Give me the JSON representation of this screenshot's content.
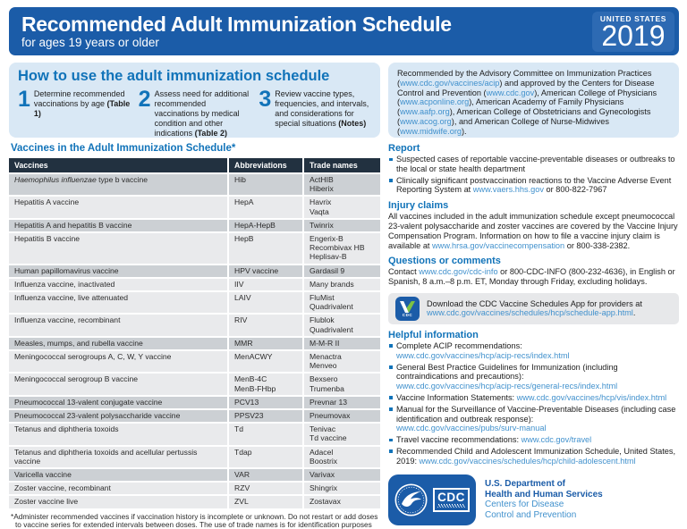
{
  "colors": {
    "header_blue": "#1b5ca8",
    "year_box_blue": "#2d6ab3",
    "light_blue_panel": "#d9e8f5",
    "heading_blue": "#1173b9",
    "link_blue": "#4191cd",
    "table_header_navy": "#223140",
    "row_dark_gray": "#ccd0d4",
    "row_light_gray": "#e9eaec",
    "app_green": "#7dc243"
  },
  "header": {
    "title": "Recommended Adult Immunization Schedule",
    "subtitle": "for ages 19 years or older",
    "country": "UNITED STATES",
    "year": "2019"
  },
  "howto": {
    "title": "How to use the adult immunization schedule",
    "steps": [
      {
        "num": "1",
        "text": "Determine recommended vaccinations by age ",
        "bold": "(Table 1)"
      },
      {
        "num": "2",
        "text": "Assess need for additional recommended vaccinations by medical condition and other indications ",
        "bold": "(Table 2)"
      },
      {
        "num": "3",
        "text": "Review vaccine types, frequencies, and intervals, and considerations for special situations ",
        "bold": "(Notes)"
      }
    ]
  },
  "table": {
    "heading": "Vaccines in the Adult Immunization Schedule*",
    "columns": [
      "Vaccines",
      "Abbreviations",
      "Trade names"
    ],
    "rows": [
      {
        "name_parts": [
          {
            "text": "Haemophilus influenzae",
            "italic": true
          },
          {
            "text": " type b vaccine"
          }
        ],
        "abbr": [
          "Hib"
        ],
        "trade": [
          "ActHIB",
          "Hiberix"
        ],
        "shade": "dark"
      },
      {
        "name_parts": [
          {
            "text": "Hepatitis A vaccine"
          }
        ],
        "abbr": [
          "HepA"
        ],
        "trade": [
          "Havrix",
          "Vaqta"
        ],
        "shade": "light"
      },
      {
        "name_parts": [
          {
            "text": "Hepatitis A and hepatitis B vaccine"
          }
        ],
        "abbr": [
          "HepA-HepB"
        ],
        "trade": [
          "Twinrix"
        ],
        "shade": "dark"
      },
      {
        "name_parts": [
          {
            "text": "Hepatitis B vaccine"
          }
        ],
        "abbr": [
          "HepB"
        ],
        "trade": [
          "Engerix-B",
          "Recombivax HB",
          "Heplisav-B"
        ],
        "shade": "light"
      },
      {
        "name_parts": [
          {
            "text": "Human papillomavirus vaccine"
          }
        ],
        "abbr": [
          "HPV vaccine"
        ],
        "trade": [
          "Gardasil 9"
        ],
        "shade": "dark"
      },
      {
        "name_parts": [
          {
            "text": "Influenza vaccine, inactivated"
          }
        ],
        "abbr": [
          "IIV"
        ],
        "trade": [
          "Many brands"
        ],
        "shade": "light"
      },
      {
        "name_parts": [
          {
            "text": "Influenza vaccine, live attenuated"
          }
        ],
        "abbr": [
          "LAIV"
        ],
        "trade": [
          "FluMist Quadrivalent"
        ],
        "shade": "light"
      },
      {
        "name_parts": [
          {
            "text": "Influenza vaccine, recombinant"
          }
        ],
        "abbr": [
          "RIV"
        ],
        "trade": [
          "Flublok Quadrivalent"
        ],
        "shade": "light"
      },
      {
        "name_parts": [
          {
            "text": "Measles, mumps, and rubella vaccine"
          }
        ],
        "abbr": [
          "MMR"
        ],
        "trade": [
          "M-M-R II"
        ],
        "shade": "dark"
      },
      {
        "name_parts": [
          {
            "text": "Meningococcal serogroups A, C, W, Y vaccine"
          }
        ],
        "abbr": [
          "MenACWY"
        ],
        "trade": [
          "Menactra",
          "Menveo"
        ],
        "shade": "light"
      },
      {
        "name_parts": [
          {
            "text": "Meningococcal serogroup B vaccine"
          }
        ],
        "abbr": [
          "MenB-4C",
          "MenB-FHbp"
        ],
        "trade": [
          "Bexsero",
          "Trumenba"
        ],
        "shade": "light"
      },
      {
        "name_parts": [
          {
            "text": "Pneumococcal 13-valent conjugate vaccine"
          }
        ],
        "abbr": [
          "PCV13"
        ],
        "trade": [
          "Prevnar 13"
        ],
        "shade": "dark"
      },
      {
        "name_parts": [
          {
            "text": "Pneumococcal 23-valent polysaccharide vaccine"
          }
        ],
        "abbr": [
          "PPSV23"
        ],
        "trade": [
          "Pneumovax"
        ],
        "shade": "dark"
      },
      {
        "name_parts": [
          {
            "text": "Tetanus and diphtheria toxoids"
          }
        ],
        "abbr": [
          "Td"
        ],
        "trade": [
          "Tenivac",
          "Td vaccine"
        ],
        "shade": "light"
      },
      {
        "name_parts": [
          {
            "text": "Tetanus and diphtheria toxoids and acellular pertussis vaccine"
          }
        ],
        "abbr": [
          "Tdap"
        ],
        "trade": [
          "Adacel",
          "Boostrix"
        ],
        "shade": "light"
      },
      {
        "name_parts": [
          {
            "text": "Varicella vaccine"
          }
        ],
        "abbr": [
          "VAR"
        ],
        "trade": [
          "Varivax"
        ],
        "shade": "dark"
      },
      {
        "name_parts": [
          {
            "text": "Zoster vaccine, recombinant"
          }
        ],
        "abbr": [
          "RZV"
        ],
        "trade": [
          "Shingrix"
        ],
        "shade": "light"
      },
      {
        "name_parts": [
          {
            "text": "Zoster vaccine live"
          }
        ],
        "abbr": [
          "ZVL"
        ],
        "trade": [
          "Zostavax"
        ],
        "shade": "light"
      }
    ],
    "footnote": "*Administer recommended vaccines if vaccination history is incomplete or unknown. Do not restart or add doses to vaccine series for extended intervals between doses. The use of trade names is for identification purposes only and does not imply endorsement by the ACIP or CDC."
  },
  "right": {
    "intro": [
      {
        "t": "Recommended by the Advisory Committee on Immunization Practices ("
      },
      {
        "l": "www.cdc.gov/vaccines/acip"
      },
      {
        "t": ") and approved by the Centers for Disease Control and Prevention ("
      },
      {
        "l": "www.cdc.gov"
      },
      {
        "t": "), American College of Physicians ("
      },
      {
        "l": "www.acponline.org"
      },
      {
        "t": "), American Academy of Family Physicians ("
      },
      {
        "l": "www.aafp.org"
      },
      {
        "t": "), American College of Obstetricians and Gynecologists ("
      },
      {
        "l": "www.acog.org"
      },
      {
        "t": "), and American College of Nurse-Midwives ("
      },
      {
        "l": "www.midwife.org"
      },
      {
        "t": ")."
      }
    ],
    "report": {
      "heading": "Report",
      "bullets": [
        [
          {
            "t": "Suspected cases of reportable vaccine-preventable diseases or outbreaks to the local or state health department"
          }
        ],
        [
          {
            "t": "Clinically significant postvaccination reactions to the Vaccine Adverse Event Reporting System at "
          },
          {
            "l": "www.vaers.hhs.gov"
          },
          {
            "t": " or 800-822-7967"
          }
        ]
      ]
    },
    "injury": {
      "heading": "Injury claims",
      "segments": [
        {
          "t": "All vaccines included in the adult immunization schedule except pneumococcal 23-valent polysaccharide and zoster vaccines are covered by the Vaccine Injury Compensation Program. Information on how to file a vaccine injury claim is available at "
        },
        {
          "l": "www.hrsa.gov/vaccinecompensation"
        },
        {
          "t": " or 800-338-2382."
        }
      ]
    },
    "questions": {
      "heading": "Questions or comments",
      "segments": [
        {
          "t": "Contact "
        },
        {
          "l": "www.cdc.gov/cdc-info"
        },
        {
          "t": " or 800-CDC-INFO (800-232-4636), in English or Spanish, 8 a.m.–8 p.m. ET, Monday through Friday, excluding holidays."
        }
      ]
    },
    "app": {
      "icon_label": "CDC",
      "segments": [
        {
          "t": "Download the CDC Vaccine Schedules App for providers at "
        },
        {
          "l": "www.cdc.gov/vaccines/schedules/hcp/schedule-app.html"
        },
        {
          "t": "."
        }
      ]
    },
    "helpful": {
      "heading": "Helpful information",
      "bullets": [
        [
          {
            "t": "Complete ACIP recommendations:"
          },
          {
            "br": true
          },
          {
            "l": "www.cdc.gov/vaccines/hcp/acip-recs/index.html"
          }
        ],
        [
          {
            "t": "General Best Practice Guidelines for Immunization (including contraindications and precautions):"
          },
          {
            "br": true
          },
          {
            "l": "www.cdc.gov/vaccines/hcp/acip-recs/general-recs/index.html"
          }
        ],
        [
          {
            "t": "Vaccine Information Statements: "
          },
          {
            "l": "www.cdc.gov/vaccines/hcp/vis/index.html"
          }
        ],
        [
          {
            "t": "Manual for the Surveillance of Vaccine-Preventable Diseases (including case identification and outbreak response):"
          },
          {
            "br": true
          },
          {
            "l": "www.cdc.gov/vaccines/pubs/surv-manual"
          }
        ],
        [
          {
            "t": "Travel vaccine recommendations: "
          },
          {
            "l": "www.cdc.gov/travel"
          }
        ],
        [
          {
            "t": "Recommended Child and Adolescent Immunization Schedule, United States, 2019: "
          },
          {
            "l": "www.cdc.gov/vaccines/schedules/hcp/child-adolescent.html"
          }
        ]
      ]
    },
    "footer": {
      "cdc_label": "CDC",
      "dept_line1": "U.S. Department of",
      "dept_line2": "Health and Human Services",
      "sub_line1": "Centers for Disease",
      "sub_line2": "Control and Prevention"
    }
  }
}
